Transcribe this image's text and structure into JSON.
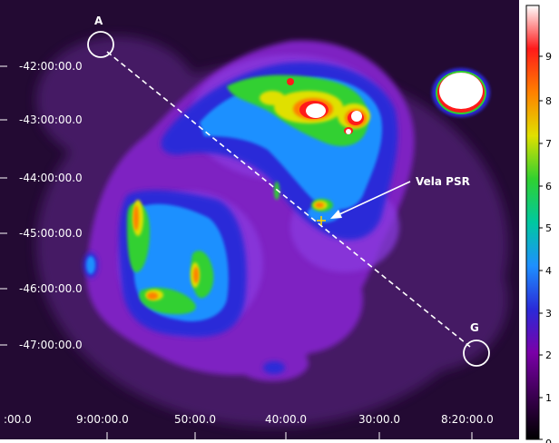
{
  "image": {
    "dec_labels": [
      "-42:00:00.0",
      "-43:00:00.0",
      "-44:00:00.0",
      "-45:00:00.0",
      "-46:00:00.0",
      "-47:00:00.0"
    ],
    "ra_labels": [
      ":00.0",
      "9:00:00.0",
      "50:00.0",
      "40:00.0",
      "30:00.0",
      "8:20:00.0"
    ],
    "annotations": {
      "region_a_label": "A",
      "region_g_label": "G",
      "pulsar_label": "Vela PSR"
    },
    "colorbar": {
      "ticks": [
        "0",
        "1",
        "2",
        "3",
        "4",
        "5",
        "6",
        "7",
        "8",
        "9"
      ],
      "colors": [
        "#000000",
        "#3a0050",
        "#7a00a8",
        "#2a2ad8",
        "#1e90ff",
        "#00c8a0",
        "#30d030",
        "#e0e000",
        "#ff8000",
        "#ff1a1a",
        "#ffffff"
      ]
    },
    "palette": {
      "background": "#230a33",
      "halo": "#4a1a6a",
      "remnant": "#7e22c2",
      "mid": "#8a3ae0",
      "blue": "#2a2ad8",
      "cyan": "#1e90ff",
      "teal": "#00c8a0",
      "green": "#30d030",
      "yellow": "#e0e000",
      "orange": "#ff8000",
      "red": "#ff1a1a",
      "peak": "#ffffff"
    }
  }
}
